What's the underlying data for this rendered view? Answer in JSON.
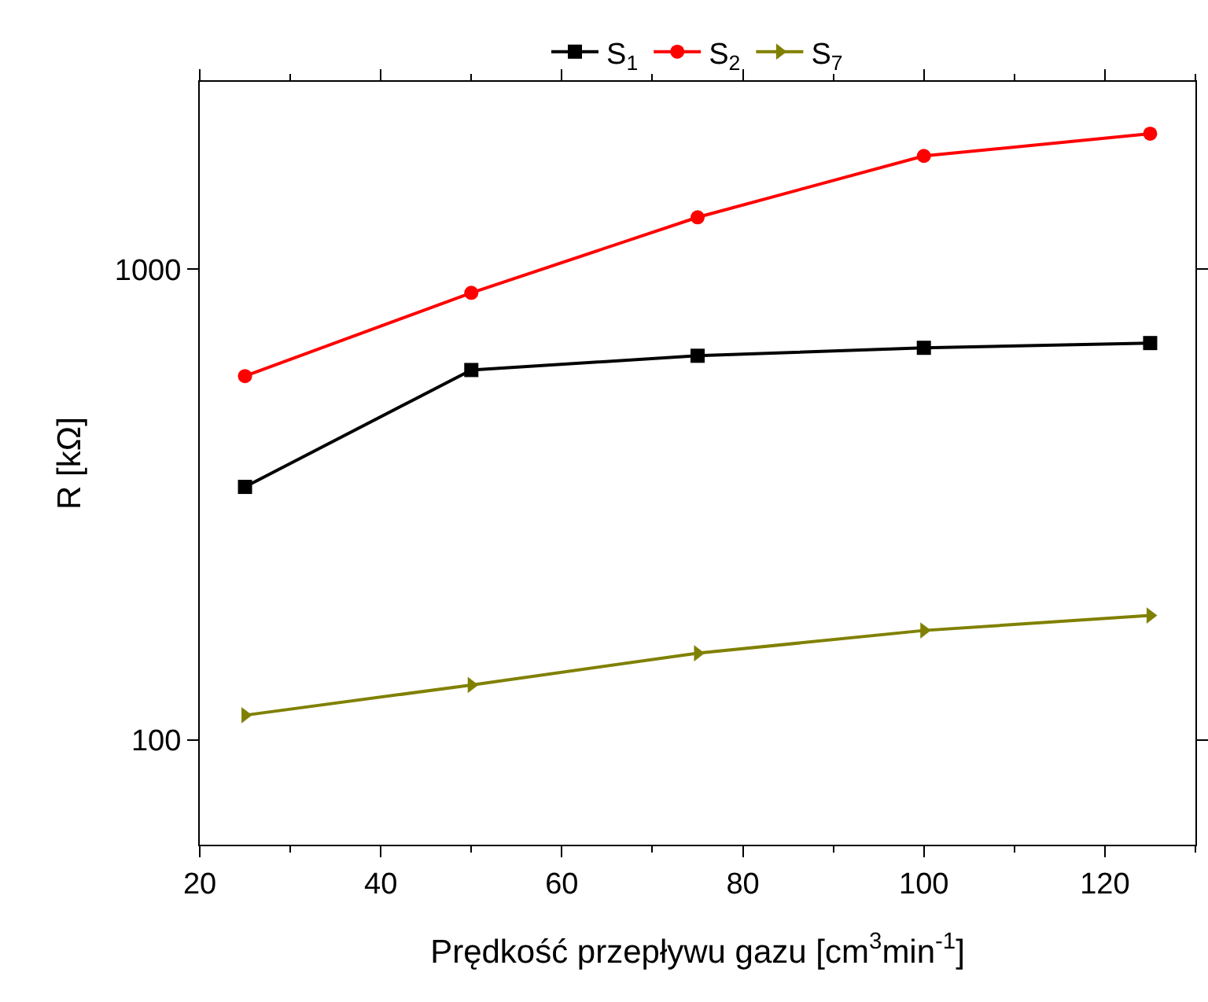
{
  "chart_data": {
    "type": "line",
    "xlabel": "Prędkość przepływu gazu [cm$^{3}$min$^{-1}$]",
    "ylabel": "R [kΩ]",
    "x": [
      25,
      50,
      75,
      100,
      125
    ],
    "series": [
      {
        "name": "S$_{1}$",
        "color": "#000000",
        "marker": "square",
        "values": [
          345,
          611,
          655,
          681,
          697
        ]
      },
      {
        "name": "S$_{2}$",
        "color": "#ff0000",
        "marker": "circle",
        "values": [
          593,
          891,
          1289,
          1740,
          1940
        ]
      },
      {
        "name": "S$_{7}$",
        "color": "#808000",
        "marker": "triangle",
        "values": [
          113,
          131,
          153,
          171,
          184
        ]
      }
    ],
    "log": "y",
    "xlim": [
      20,
      130
    ],
    "ylim": [
      60,
      2500
    ],
    "xticks": [
      20,
      40,
      60,
      80,
      100,
      120
    ],
    "yticks": [
      100,
      1000
    ],
    "legend": "top",
    "line_style": "solid"
  }
}
